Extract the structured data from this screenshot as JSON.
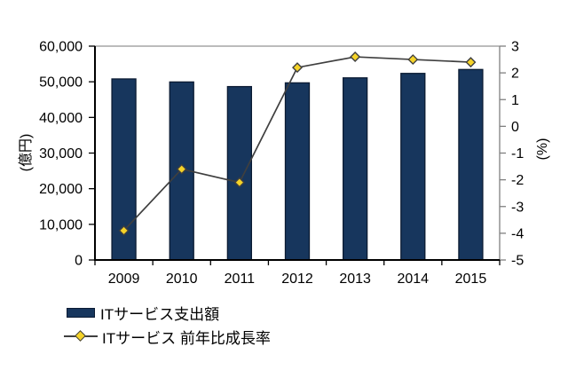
{
  "chart_data": {
    "type": "bar",
    "title": "",
    "categories": [
      "2009",
      "2010",
      "2011",
      "2012",
      "2013",
      "2014",
      "2015"
    ],
    "series": [
      {
        "name": "ITサービス支出額",
        "type": "bar",
        "axis": "left",
        "values": [
          50800,
          49950,
          48650,
          49700,
          51100,
          52350,
          53450
        ]
      },
      {
        "name": "ITサービス 前年比成長率",
        "type": "line",
        "axis": "right",
        "marker": "diamond",
        "values": [
          -3.9,
          -1.6,
          -2.1,
          2.2,
          2.6,
          2.5,
          2.4
        ]
      }
    ],
    "axes": {
      "left": {
        "title": "(億円)",
        "min": 0,
        "max": 60000,
        "tick_step": 10000,
        "tick_labels": [
          "0",
          "10,000",
          "20,000",
          "30,000",
          "40,000",
          "50,000",
          "60,000"
        ]
      },
      "right": {
        "title": "(%)",
        "min": -5,
        "max": 3,
        "tick_step": 1,
        "tick_labels": [
          "-5",
          "-4",
          "-3",
          "-2",
          "-1",
          "0",
          "1",
          "2",
          "3"
        ]
      }
    },
    "legend_position": "bottom-left",
    "grid": "top-gridline-only"
  },
  "colors": {
    "bar_fill": "#17365D",
    "bar_border": "#0B1B33",
    "line": "#3F3F3F",
    "marker_fill": "#F5D328",
    "marker_border": "#3F3F3F",
    "axis": "#000000",
    "right_axis": "#7F7F7F",
    "gridline": "#A6A6A6",
    "text": "#000000",
    "background": "#FFFFFF"
  }
}
